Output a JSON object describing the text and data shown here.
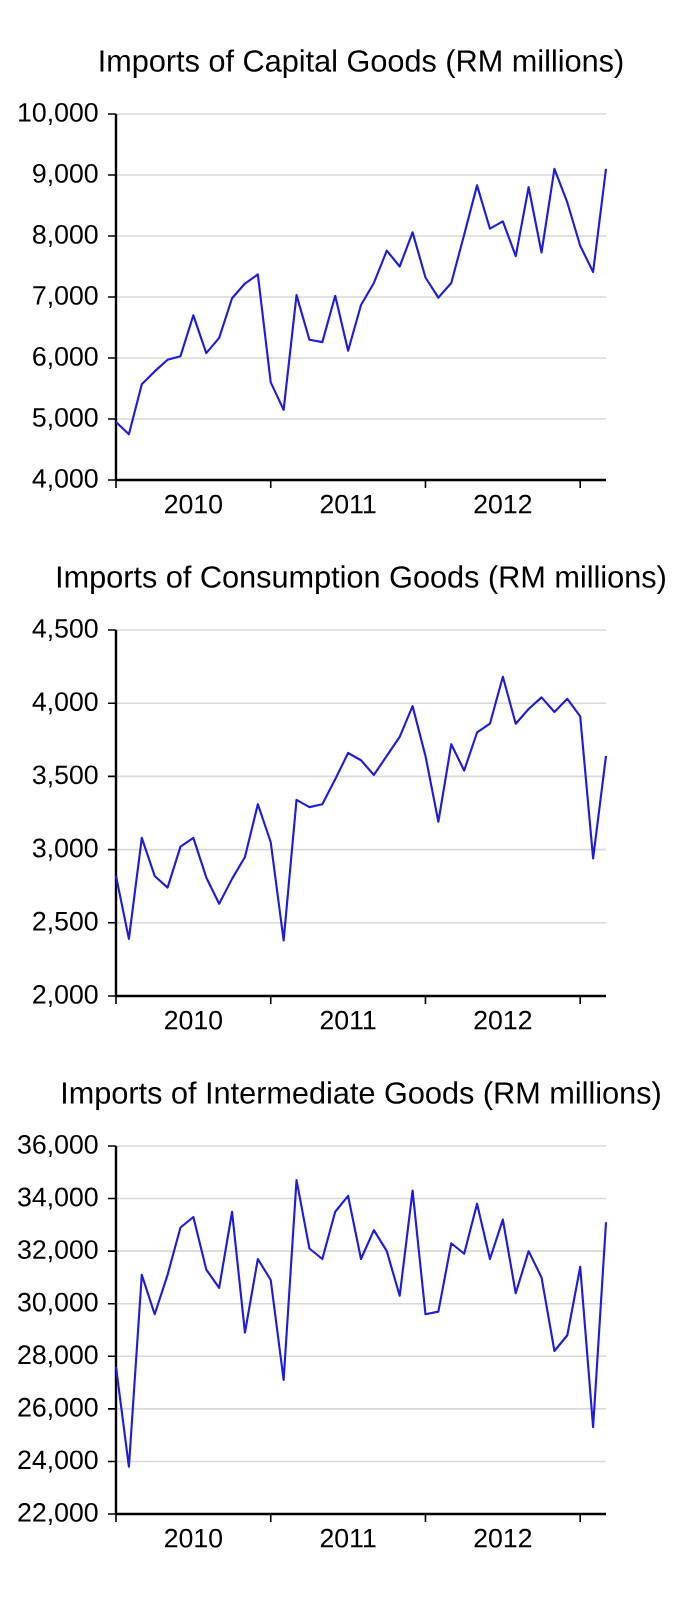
{
  "chart_data": [
    {
      "type": "line",
      "title": "Imports of Capital Goods (RM millions)",
      "x": [
        "2010-01",
        "2010-02",
        "2010-03",
        "2010-04",
        "2010-05",
        "2010-06",
        "2010-07",
        "2010-08",
        "2010-09",
        "2010-10",
        "2010-11",
        "2010-12",
        "2011-01",
        "2011-02",
        "2011-03",
        "2011-04",
        "2011-05",
        "2011-06",
        "2011-07",
        "2011-08",
        "2011-09",
        "2011-10",
        "2011-11",
        "2011-12",
        "2012-01",
        "2012-02",
        "2012-03",
        "2012-04",
        "2012-05",
        "2012-06",
        "2012-07",
        "2012-08",
        "2012-09",
        "2012-10",
        "2012-11",
        "2012-12",
        "2013-01",
        "2013-02",
        "2013-03"
      ],
      "series": [
        {
          "color": "#1c1ce6",
          "values": [
            4950,
            4750,
            5570,
            5780,
            5970,
            6030,
            6700,
            6080,
            6330,
            6980,
            7220,
            7370,
            5600,
            5150,
            7030,
            6300,
            6260,
            7020,
            6120,
            6870,
            7230,
            7760,
            7500,
            8060,
            7320,
            6990,
            7230,
            8020,
            8830,
            8120,
            8240,
            7670,
            8800,
            7730,
            9100,
            8550,
            7840,
            7410,
            9100
          ]
        }
      ],
      "xlim": [
        "2010-01",
        "2013-03"
      ],
      "xticks": [
        {
          "value": "2010-01",
          "label": null
        },
        {
          "value": "2011-01",
          "label": null
        },
        {
          "value": "2012-01",
          "label": null
        },
        {
          "value": "2013-01",
          "label": null
        },
        {
          "value": "2010-07",
          "label": "2010"
        },
        {
          "value": "2011-07",
          "label": "2011"
        },
        {
          "value": "2012-07",
          "label": "2012"
        }
      ],
      "ylim": [
        4000,
        10000
      ],
      "yticks": [
        {
          "value": 4000,
          "label": "4,000"
        },
        {
          "value": 5000,
          "label": "5,000"
        },
        {
          "value": 6000,
          "label": "6,000"
        },
        {
          "value": 7000,
          "label": "7,000"
        },
        {
          "value": 8000,
          "label": "8,000"
        },
        {
          "value": 9000,
          "label": "9,000"
        },
        {
          "value": 10000,
          "label": "10,000"
        }
      ],
      "grid": "y"
    },
    {
      "type": "line",
      "title": "Imports of Consumption Goods (RM millions)",
      "x": [
        "2010-01",
        "2010-02",
        "2010-03",
        "2010-04",
        "2010-05",
        "2010-06",
        "2010-07",
        "2010-08",
        "2010-09",
        "2010-10",
        "2010-11",
        "2010-12",
        "2011-01",
        "2011-02",
        "2011-03",
        "2011-04",
        "2011-05",
        "2011-06",
        "2011-07",
        "2011-08",
        "2011-09",
        "2011-10",
        "2011-11",
        "2011-12",
        "2012-01",
        "2012-02",
        "2012-03",
        "2012-04",
        "2012-05",
        "2012-06",
        "2012-07",
        "2012-08",
        "2012-09",
        "2012-10",
        "2012-11",
        "2012-12",
        "2013-01",
        "2013-02",
        "2013-03"
      ],
      "series": [
        {
          "color": "#1c1ce6",
          "values": [
            2820,
            2390,
            3080,
            2820,
            2740,
            3020,
            3080,
            2810,
            2630,
            2800,
            2950,
            3310,
            3050,
            2380,
            3340,
            3290,
            3310,
            3480,
            3660,
            3610,
            3510,
            3640,
            3770,
            3980,
            3640,
            3190,
            3720,
            3540,
            3800,
            3860,
            4180,
            3860,
            3960,
            4040,
            3940,
            4030,
            3910,
            2940,
            3640
          ]
        }
      ],
      "xlim": [
        "2010-01",
        "2013-03"
      ],
      "xticks": [
        {
          "value": "2010-01",
          "label": null
        },
        {
          "value": "2011-01",
          "label": null
        },
        {
          "value": "2012-01",
          "label": null
        },
        {
          "value": "2013-01",
          "label": null
        },
        {
          "value": "2010-07",
          "label": "2010"
        },
        {
          "value": "2011-07",
          "label": "2011"
        },
        {
          "value": "2012-07",
          "label": "2012"
        }
      ],
      "ylim": [
        2000,
        4500
      ],
      "yticks": [
        {
          "value": 2000,
          "label": "2,000"
        },
        {
          "value": 2500,
          "label": "2,500"
        },
        {
          "value": 3000,
          "label": "3,000"
        },
        {
          "value": 3500,
          "label": "3,500"
        },
        {
          "value": 4000,
          "label": "4,000"
        },
        {
          "value": 4500,
          "label": "4,500"
        }
      ],
      "grid": "y"
    },
    {
      "type": "line",
      "title": "Imports of Intermediate Goods (RM millions)",
      "x": [
        "2010-01",
        "2010-02",
        "2010-03",
        "2010-04",
        "2010-05",
        "2010-06",
        "2010-07",
        "2010-08",
        "2010-09",
        "2010-10",
        "2010-11",
        "2010-12",
        "2011-01",
        "2011-02",
        "2011-03",
        "2011-04",
        "2011-05",
        "2011-06",
        "2011-07",
        "2011-08",
        "2011-09",
        "2011-10",
        "2011-11",
        "2011-12",
        "2012-01",
        "2012-02",
        "2012-03",
        "2012-04",
        "2012-05",
        "2012-06",
        "2012-07",
        "2012-08",
        "2012-09",
        "2012-10",
        "2012-11",
        "2012-12",
        "2013-01",
        "2013-02",
        "2013-03"
      ],
      "series": [
        {
          "color": "#1c1ce6",
          "values": [
            27600,
            23800,
            31100,
            29600,
            31100,
            32900,
            33300,
            31300,
            30600,
            33500,
            28900,
            31700,
            30900,
            27100,
            34700,
            32100,
            31700,
            33500,
            34100,
            31700,
            32800,
            32000,
            30300,
            34300,
            29600,
            29700,
            32300,
            31900,
            33800,
            31700,
            33200,
            30400,
            32000,
            31000,
            28200,
            28800,
            31400,
            25300,
            33100
          ]
        }
      ],
      "xlim": [
        "2010-01",
        "2013-03"
      ],
      "xticks": [
        {
          "value": "2010-01",
          "label": null
        },
        {
          "value": "2011-01",
          "label": null
        },
        {
          "value": "2012-01",
          "label": null
        },
        {
          "value": "2013-01",
          "label": null
        },
        {
          "value": "2010-07",
          "label": "2010"
        },
        {
          "value": "2011-07",
          "label": "2011"
        },
        {
          "value": "2012-07",
          "label": "2012"
        }
      ],
      "ylim": [
        22000,
        36000
      ],
      "yticks": [
        {
          "value": 22000,
          "label": "22,000"
        },
        {
          "value": 24000,
          "label": "24,000"
        },
        {
          "value": 26000,
          "label": "26,000"
        },
        {
          "value": 28000,
          "label": "28,000"
        },
        {
          "value": 30000,
          "label": "30,000"
        },
        {
          "value": 32000,
          "label": "32,000"
        },
        {
          "value": 34000,
          "label": "34,000"
        },
        {
          "value": 36000,
          "label": "36,000"
        }
      ],
      "grid": "y"
    }
  ]
}
